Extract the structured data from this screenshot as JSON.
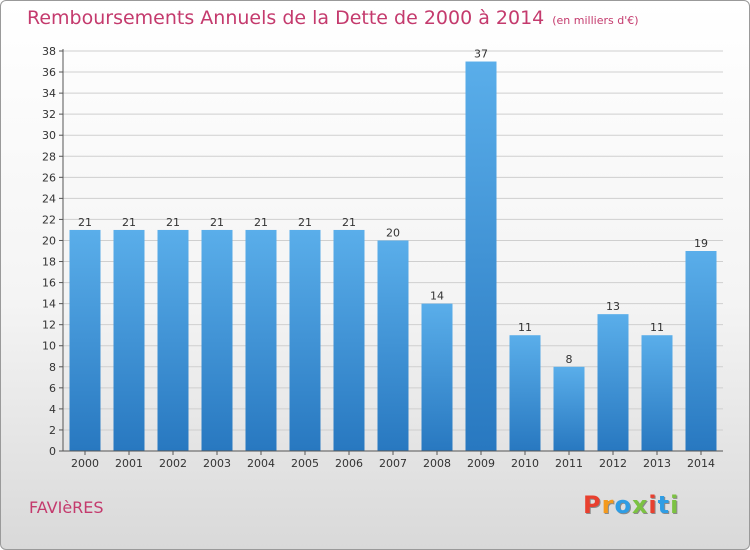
{
  "title": "Remboursements Annuels de la Dette de 2000 à 2014",
  "unit": "(en milliers d'€)",
  "commune": "FAVIèRES",
  "logo": {
    "text": "Proxiti",
    "colors": [
      "#e8402f",
      "#f49a1d",
      "#2f9de4",
      "#7cc242",
      "#e8402f",
      "#2f9de4",
      "#7cc242"
    ]
  },
  "colors": {
    "bar": "#4fa3e4",
    "bar_dark": "#2878c0",
    "title": "#c43a6d",
    "grid": "#cfcfcf"
  },
  "chart_data": {
    "type": "bar",
    "categories": [
      "2000",
      "2001",
      "2002",
      "2003",
      "2004",
      "2005",
      "2006",
      "2007",
      "2008",
      "2009",
      "2010",
      "2011",
      "2012",
      "2013",
      "2014"
    ],
    "values": [
      21,
      21,
      21,
      21,
      21,
      21,
      21,
      20,
      14,
      37,
      11,
      8,
      13,
      11,
      19
    ],
    "yticks": [
      0,
      2,
      4,
      6,
      8,
      10,
      12,
      14,
      16,
      18,
      20,
      22,
      24,
      26,
      28,
      30,
      32,
      34,
      36,
      38
    ],
    "ylim": [
      0,
      38
    ],
    "grid": true,
    "title": "Remboursements Annuels de la Dette de 2000 à 2014",
    "xlabel": "",
    "ylabel": ""
  }
}
